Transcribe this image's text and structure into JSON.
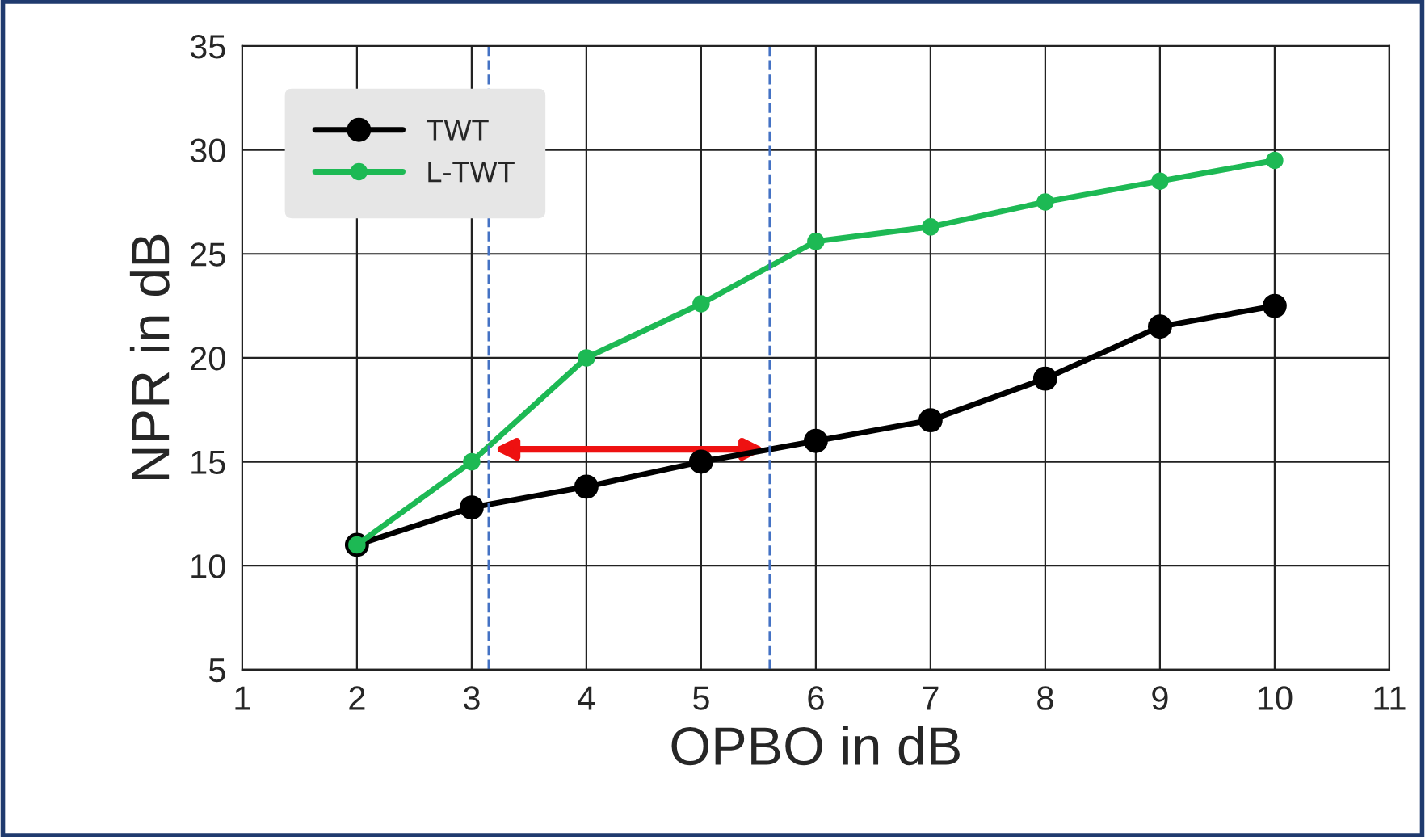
{
  "chart_data": {
    "type": "line",
    "xlabel": "OPBO in dB",
    "ylabel": "NPR in dB",
    "x": [
      2,
      3,
      4,
      5,
      6,
      7,
      8,
      9,
      10
    ],
    "series": [
      {
        "name": "TWT",
        "color": "#000000",
        "values": [
          11,
          12.8,
          13.8,
          15,
          16,
          17,
          19,
          21.5,
          22.5
        ]
      },
      {
        "name": "L-TWT",
        "color": "#1db954",
        "values": [
          11,
          15,
          20,
          22.6,
          25.6,
          26.3,
          27.5,
          28.5,
          29.5
        ]
      }
    ],
    "xlim": [
      1,
      11
    ],
    "xticks": [
      1,
      2,
      3,
      4,
      5,
      6,
      7,
      8,
      9,
      10,
      11
    ],
    "ylim": [
      5,
      35
    ],
    "yticks": [
      5,
      10,
      15,
      20,
      25,
      30,
      35
    ],
    "ref_lines": [
      {
        "axis": "x",
        "value": 3.15,
        "color": "#4472c4",
        "line_style": "dashed"
      },
      {
        "axis": "x",
        "value": 5.6,
        "color": "#4472c4",
        "line_style": "dashed"
      }
    ],
    "grid": true,
    "legend": "top left",
    "marker": "circle",
    "line_style": "solid"
  }
}
